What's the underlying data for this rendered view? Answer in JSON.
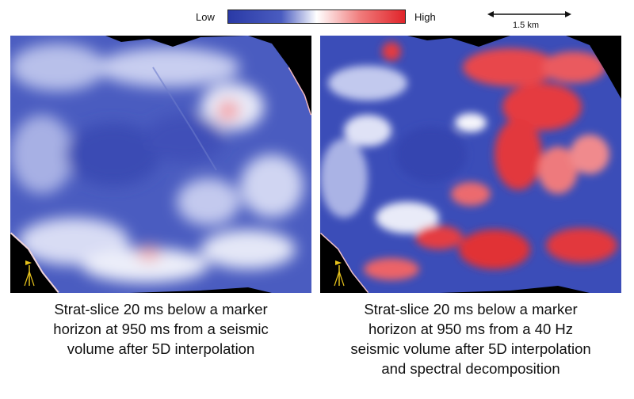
{
  "colorbar": {
    "low_label": "Low",
    "high_label": "High",
    "low_color": "#2a3aa6",
    "mid_color": "#ffffff",
    "high_color": "#e0242a"
  },
  "scale_bar": {
    "label": "1.5 km"
  },
  "panels": [
    {
      "caption_lines": [
        "Strat-slice 20 ms below a marker",
        "horizon at 950 ms from a seismic",
        "volume after 5D interpolation"
      ]
    },
    {
      "caption_lines": [
        "Strat-slice 20 ms below a marker",
        "horizon at 950 ms from a 40 Hz",
        "seismic volume after 5D interpolation",
        "and spectral decomposition"
      ]
    }
  ]
}
